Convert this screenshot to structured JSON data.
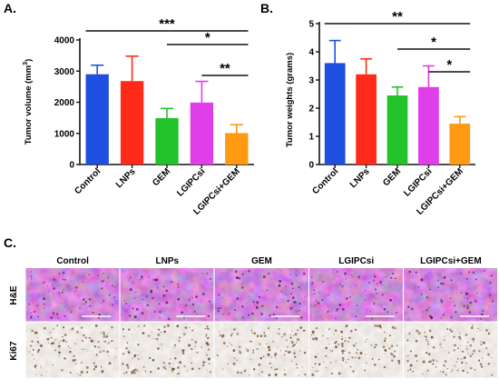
{
  "panels": {
    "a": "A.",
    "b": "B.",
    "c": "C."
  },
  "chart_data": [
    {
      "type": "bar",
      "categories": [
        "Control",
        "LNPs",
        "GEM",
        "LGIPCsi",
        "LGIPCsi+GEM"
      ],
      "values": [
        2900,
        2680,
        1490,
        1990,
        1010
      ],
      "errors": [
        290,
        800,
        310,
        680,
        270
      ],
      "colors": [
        "#1f4fe0",
        "#ff2a1a",
        "#22c22a",
        "#e03ee8",
        "#ff9a12"
      ],
      "ylabel_main": "Tumor volume (mm",
      "ylabel_sup": "3",
      "ylabel_end": ")",
      "ylim": [
        0,
        4000
      ],
      "yticks": [
        0,
        1000,
        2000,
        3000,
        4000
      ],
      "significance": [
        {
          "from": 0,
          "to": 4,
          "label": "***",
          "level": 1
        },
        {
          "from": 2,
          "to": 4,
          "label": "*",
          "level": 2
        },
        {
          "from": 3,
          "to": 4,
          "label": "**",
          "level": 3
        }
      ]
    },
    {
      "type": "bar",
      "categories": [
        "Control",
        "LNPs",
        "GEM",
        "LGIPCsi",
        "LGIPCsi+GEM"
      ],
      "values": [
        3.6,
        3.2,
        2.45,
        2.75,
        1.45
      ],
      "errors": [
        0.8,
        0.55,
        0.3,
        0.75,
        0.25
      ],
      "colors": [
        "#1f4fe0",
        "#ff2a1a",
        "#22c22a",
        "#e03ee8",
        "#ff9a12"
      ],
      "ylabel": "Tumor weights (grams)",
      "ylim": [
        0,
        5
      ],
      "yticks": [
        0,
        1,
        2,
        3,
        4,
        5
      ],
      "significance": [
        {
          "from": 0,
          "to": 4,
          "label": "**",
          "level": 1
        },
        {
          "from": 2,
          "to": 4,
          "label": "*",
          "level": 2
        },
        {
          "from": 3,
          "to": 4,
          "label": "*",
          "level": 3
        }
      ]
    }
  ],
  "histology": {
    "columns": [
      "Control",
      "LNPs",
      "GEM",
      "LGIPCsi",
      "LGIPCsi+GEM"
    ],
    "rows": [
      "H&E",
      "Ki67"
    ],
    "row_colors": [
      "#8e3f9a",
      "#e2dcd6"
    ],
    "row_speckle": [
      "#5d2370",
      "#7a5330"
    ]
  }
}
